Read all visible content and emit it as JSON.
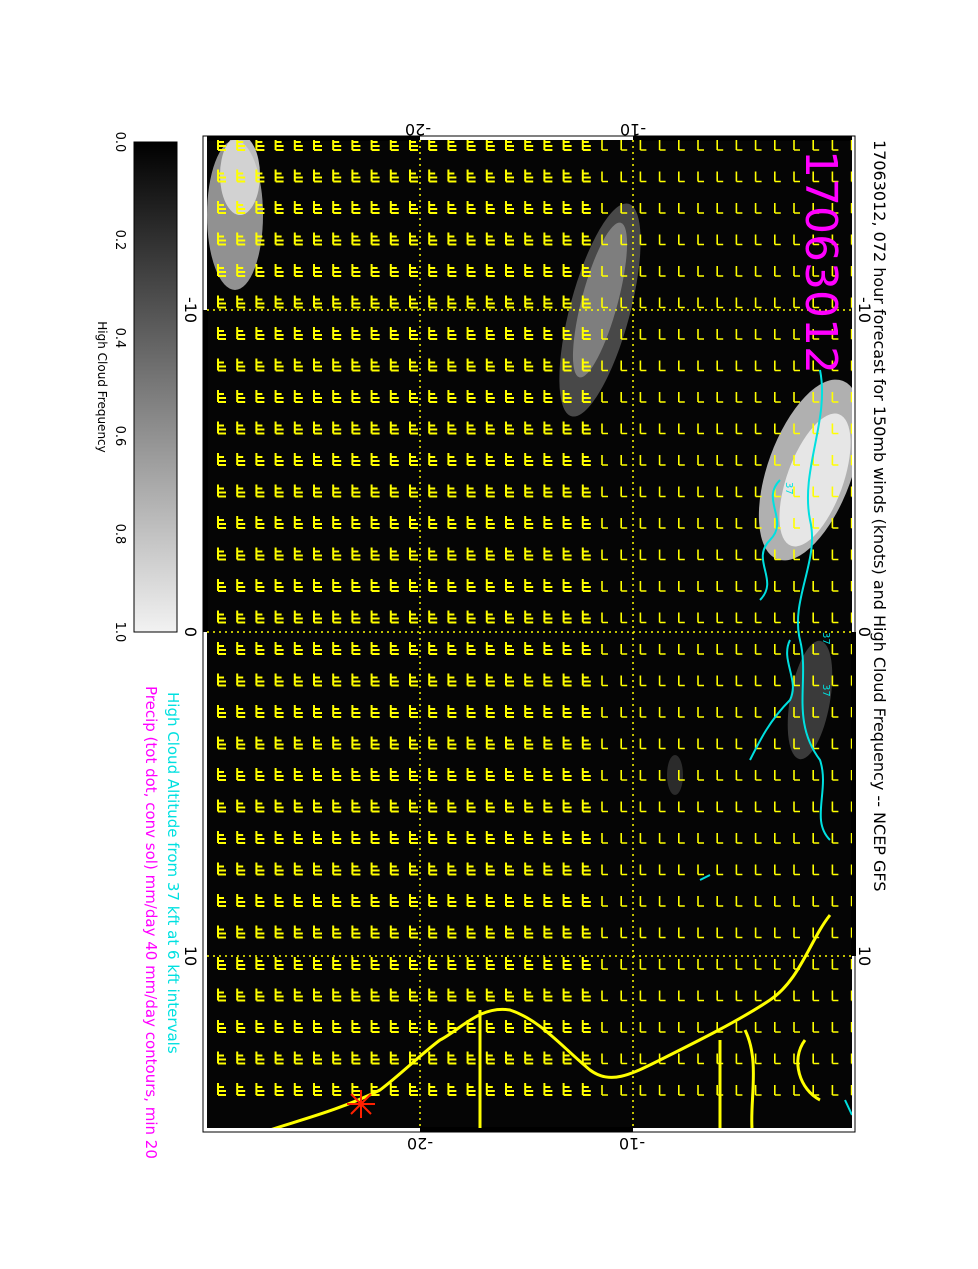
{
  "title": "17063012, 072 hour forecast for 150mb winds (knots) and High Cloud Frequency -- NCEP GFS",
  "stamp": "17063012",
  "colorbar": {
    "label": "High Cloud Frequency",
    "ticks": [
      "0.0",
      "0.2",
      "0.4",
      "0.6",
      "0.8",
      "1.0"
    ]
  },
  "legend": {
    "line1": "High Cloud Altitude from 37 kft at 6 kft intervals",
    "line2": "Precip (tot dot, conv sol) mm/day 40 mm/day contours, min 20"
  },
  "axes": {
    "top_ticks": [
      "-20",
      "-10"
    ],
    "bottom_ticks": [
      "-20",
      "-10"
    ],
    "left_ticks": [
      "-10",
      "0",
      "10"
    ],
    "right_ticks": [
      "-10",
      "0",
      "10"
    ]
  },
  "contour_labels": [
    "37",
    "37",
    "37"
  ],
  "colors": {
    "background": "#ffffff",
    "field": "#050505",
    "wind_barbs": "#ffff00",
    "coastline": "#ffff00",
    "cloud_altitude": "#00e0e0",
    "precip": "#ff00ff",
    "title_stamp": "#ff00ff",
    "marker": "#ff2000"
  },
  "icons": {
    "marker": "red-asterisk-marker-icon"
  }
}
